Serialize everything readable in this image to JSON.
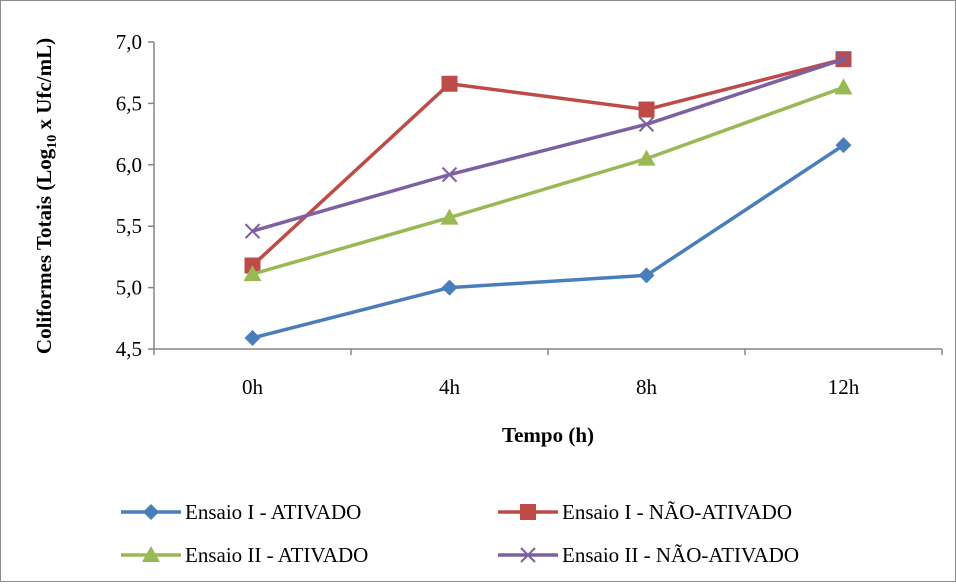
{
  "chart_data": {
    "type": "line",
    "xlabel": "Tempo (h)",
    "ylabel_parts": {
      "before": "Coliformes Totais (Log",
      "sub": "10",
      "after": " x Ufc/mL)"
    },
    "categories": [
      "0h",
      "4h",
      "8h",
      "12h"
    ],
    "ylim": [
      4.5,
      7.0
    ],
    "yticks": [
      "4,5",
      "5,0",
      "5,5",
      "6,0",
      "6,5",
      "7,0"
    ],
    "ytick_values": [
      4.5,
      5.0,
      5.5,
      6.0,
      6.5,
      7.0
    ],
    "grid": false,
    "legend_position": "bottom",
    "series": [
      {
        "name": "Ensaio I - ATIVADO",
        "color": "#4a7ebb",
        "marker": "diamond",
        "values": [
          4.59,
          5.0,
          5.1,
          6.16
        ]
      },
      {
        "name": "Ensaio I - NÃO-ATIVADO",
        "color": "#be4b48",
        "marker": "square",
        "values": [
          5.18,
          6.66,
          6.45,
          6.86
        ]
      },
      {
        "name": "Ensaio II - ATIVADO",
        "color": "#98b954",
        "marker": "triangle",
        "values": [
          5.11,
          5.57,
          6.05,
          6.63
        ]
      },
      {
        "name": "Ensaio II - NÃO-ATIVADO",
        "color": "#7d60a0",
        "marker": "x",
        "values": [
          5.46,
          5.92,
          6.33,
          6.86
        ]
      }
    ]
  }
}
